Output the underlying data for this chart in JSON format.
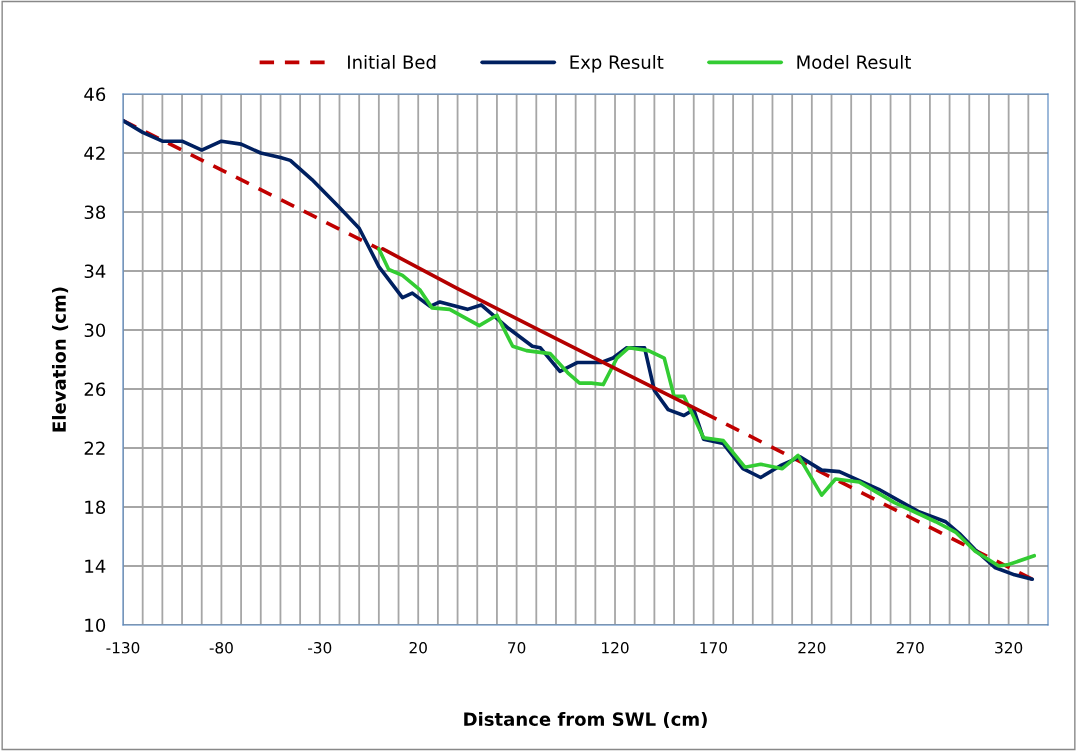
{
  "chart_data": {
    "type": "line",
    "xlabel": "Distance from SWL (cm)",
    "ylabel": "Elevation (cm)",
    "xlim": [
      -130,
      340
    ],
    "ylim": [
      10,
      46
    ],
    "xticks": [
      -130,
      {
        "value": -120,
        "label": null
      },
      {
        "value": -110,
        "label": null
      },
      {
        "value": -100,
        "label": null
      },
      {
        "value": -90,
        "label": null
      },
      -80,
      {
        "value": -70,
        "label": null
      },
      {
        "value": -60,
        "label": null
      },
      {
        "value": -50,
        "label": null
      },
      {
        "value": -40,
        "label": null
      },
      -30,
      {
        "value": -20,
        "label": null
      },
      {
        "value": -10,
        "label": null
      },
      {
        "value": 0,
        "label": null
      },
      {
        "value": 10,
        "label": null
      },
      20,
      {
        "value": 30,
        "label": null
      },
      {
        "value": 40,
        "label": null
      },
      {
        "value": 50,
        "label": null
      },
      {
        "value": 60,
        "label": null
      },
      70,
      {
        "value": 80,
        "label": null
      },
      {
        "value": 90,
        "label": null
      },
      {
        "value": 100,
        "label": null
      },
      {
        "value": 110,
        "label": null
      },
      120,
      {
        "value": 130,
        "label": null
      },
      {
        "value": 140,
        "label": null
      },
      {
        "value": 150,
        "label": null
      },
      {
        "value": 160,
        "label": null
      },
      170,
      {
        "value": 180,
        "label": null
      },
      {
        "value": 190,
        "label": null
      },
      {
        "value": 200,
        "label": null
      },
      {
        "value": 210,
        "label": null
      },
      220,
      {
        "value": 230,
        "label": null
      },
      {
        "value": 240,
        "label": null
      },
      {
        "value": 250,
        "label": null
      },
      {
        "value": 260,
        "label": null
      },
      270,
      {
        "value": 280,
        "label": null
      },
      {
        "value": 290,
        "label": null
      },
      {
        "value": 300,
        "label": null
      },
      {
        "value": 310,
        "label": null
      },
      320,
      {
        "value": 330,
        "label": null
      }
    ],
    "yticks": [
      10,
      14,
      18,
      22,
      26,
      30,
      34,
      38,
      42,
      46
    ],
    "grid": true,
    "legend": "top",
    "marker": "none",
    "series": [
      {
        "name": "Initial Bed",
        "color": "#c00000",
        "line_style": "dashed",
        "x": [
          -130,
          0,
          80,
          165,
          332
        ],
        "values": [
          44.2,
          35.5,
          null,
          24.4,
          13.1
        ]
      },
      {
        "name": "Exp Result",
        "color": "#002060",
        "line_style": "solid",
        "x": [
          -130,
          -120,
          -110,
          -100,
          -90,
          -80,
          -70,
          -60,
          -50,
          -45,
          -34,
          -20,
          -10,
          0,
          12,
          17,
          26,
          31,
          45,
          52,
          66,
          78,
          82,
          92,
          101,
          113,
          119,
          126,
          135,
          140,
          147,
          155,
          160,
          165,
          175,
          185,
          194,
          204,
          214,
          225,
          234,
          254,
          274,
          288,
          295,
          303,
          313,
          323,
          332
        ],
        "values": [
          44.2,
          43.4,
          42.8,
          42.8,
          42.2,
          42.8,
          42.6,
          42.0,
          41.7,
          41.5,
          40.2,
          38.3,
          36.9,
          34.3,
          32.2,
          32.5,
          31.6,
          31.9,
          31.4,
          31.7,
          30.1,
          28.9,
          28.8,
          27.2,
          27.8,
          27.8,
          28.1,
          28.8,
          28.8,
          25.9,
          24.6,
          24.2,
          24.6,
          22.6,
          22.3,
          20.6,
          20.0,
          20.8,
          21.4,
          20.5,
          20.4,
          19.2,
          17.7,
          17.0,
          16.2,
          15.1,
          13.9,
          13.4,
          13.1
        ]
      },
      {
        "name": "Model Result",
        "color": "#33cc33",
        "line_style": "solid",
        "x": [
          0,
          5,
          12,
          21,
          27,
          36,
          51,
          60,
          68,
          75,
          87,
          96,
          102,
          108,
          114,
          121,
          127,
          137,
          145,
          150,
          155,
          160,
          165,
          175,
          186,
          194,
          205,
          213,
          225,
          232,
          244,
          262,
          283,
          293,
          303,
          315,
          320,
          333
        ],
        "values": [
          35.5,
          34.1,
          33.7,
          32.7,
          31.5,
          31.4,
          30.3,
          31.0,
          28.9,
          28.6,
          28.4,
          27.1,
          26.4,
          26.4,
          26.3,
          28.1,
          28.8,
          28.6,
          28.1,
          25.5,
          25.5,
          24.1,
          22.7,
          22.5,
          20.7,
          20.9,
          20.6,
          21.5,
          18.8,
          19.9,
          19.7,
          18.3,
          17.0,
          16.3,
          15.0,
          14.0,
          14.1,
          14.7
        ]
      },
      {
        "color": "#b40000",
        "line_style": "solid",
        "x": [
          2,
          40,
          80,
          120,
          165
        ],
        "values": [
          35.5,
          32.8,
          30.1,
          27.4,
          24.4
        ]
      }
    ]
  }
}
